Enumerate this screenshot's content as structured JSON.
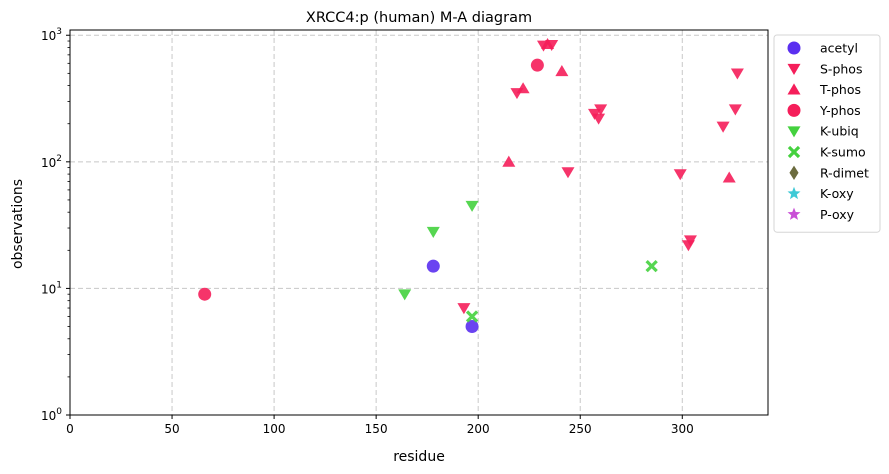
{
  "chart_data": {
    "type": "scatter",
    "title": "XRCC4:p (human) M-A diagram",
    "xlabel": "residue",
    "ylabel": "observations",
    "xlim": [
      0,
      342
    ],
    "ylim": [
      1,
      1100
    ],
    "yscale": "log",
    "grid": true,
    "legend_position": "outside-right",
    "x_ticks": [
      0,
      50,
      100,
      150,
      200,
      250,
      300
    ],
    "y_ticks": [
      1,
      10,
      100,
      1000
    ],
    "y_tick_labels": [
      {
        "base": "10",
        "exp": "0"
      },
      {
        "base": "10",
        "exp": "1"
      },
      {
        "base": "10",
        "exp": "2"
      },
      {
        "base": "10",
        "exp": "3"
      }
    ],
    "series": [
      {
        "name": "acetyl",
        "marker": "circle",
        "color": "#5a2ff0",
        "points": [
          [
            178,
            15
          ],
          [
            197,
            5
          ]
        ]
      },
      {
        "name": "S-phos",
        "marker": "triangle-down",
        "color": "#f51e5a",
        "points": [
          [
            193,
            7
          ],
          [
            219,
            350
          ],
          [
            232,
            830
          ],
          [
            236,
            840
          ],
          [
            244,
            83
          ],
          [
            257,
            240
          ],
          [
            259,
            220
          ],
          [
            260,
            260
          ],
          [
            299,
            80
          ],
          [
            303,
            22
          ],
          [
            304,
            24
          ],
          [
            320,
            190
          ],
          [
            326,
            260
          ],
          [
            327,
            500
          ]
        ]
      },
      {
        "name": "T-phos",
        "marker": "triangle-up",
        "color": "#f51e5a",
        "points": [
          [
            215,
            100
          ],
          [
            222,
            380
          ],
          [
            234,
            850
          ],
          [
            241,
            520
          ],
          [
            323,
            75
          ]
        ]
      },
      {
        "name": "Y-phos",
        "marker": "circle",
        "color": "#f51e5a",
        "points": [
          [
            66,
            9
          ],
          [
            229,
            580
          ]
        ]
      },
      {
        "name": "K-ubiq",
        "marker": "triangle-down",
        "color": "#44d13e",
        "points": [
          [
            164,
            9
          ],
          [
            178,
            28
          ],
          [
            197,
            45
          ]
        ]
      },
      {
        "name": "K-sumo",
        "marker": "x",
        "color": "#44d13e",
        "points": [
          [
            197,
            6
          ],
          [
            285,
            15
          ]
        ]
      },
      {
        "name": "R-dimet",
        "marker": "diamond",
        "color": "#6b6b3e",
        "points": []
      },
      {
        "name": "K-oxy",
        "marker": "star",
        "color": "#3ec9d6",
        "points": []
      },
      {
        "name": "P-oxy",
        "marker": "star",
        "color": "#c94ed6",
        "points": []
      }
    ]
  }
}
